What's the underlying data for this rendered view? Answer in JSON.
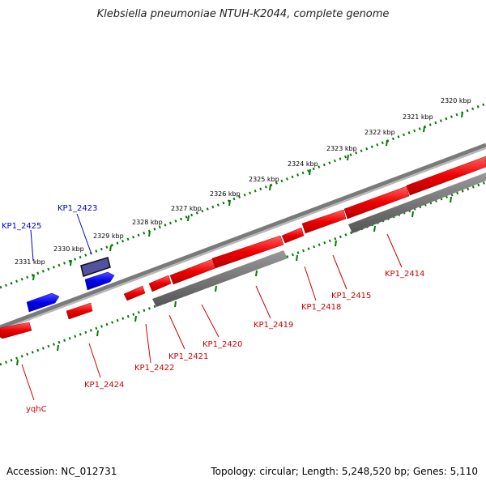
{
  "header": {
    "title": "Klebsiella pneumoniae NTUH-K2044, complete genome"
  },
  "footer": {
    "accession": "Accession: NC_012731",
    "topology": "Topology: circular; Length: 5,248,520 bp; Genes: 5,110"
  },
  "colors": {
    "forward_gene": "#0000ee",
    "reverse_gene": "#ee0000",
    "ticks": "#007a00",
    "backbone": "#7a7a7a"
  },
  "ruler": {
    "upper_track_labels": [
      "2320 kbp",
      "2321 kbp",
      "2322 kbp",
      "2323 kbp",
      "2324 kbp",
      "2325 kbp",
      "2326 kbp",
      "2327 kbp",
      "2328 kbp",
      "2329 kbp",
      "2330 kbp",
      "2331 kbp"
    ]
  },
  "genes": {
    "forward": [
      "KP1_2425",
      "KP1_2423"
    ],
    "reverse": [
      "KP1_2414",
      "KP1_2415",
      "KP1_2418",
      "KP1_2419",
      "KP1_2420",
      "KP1_2421",
      "KP1_2422",
      "KP1_2424",
      "yqhC"
    ]
  }
}
